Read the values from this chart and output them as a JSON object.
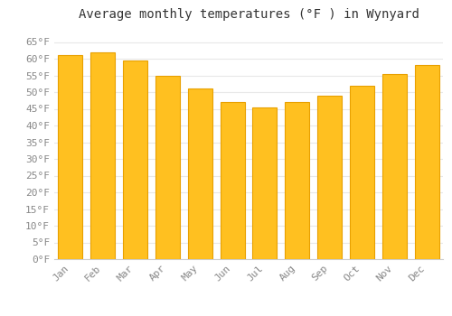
{
  "months": [
    "Jan",
    "Feb",
    "Mar",
    "Apr",
    "May",
    "Jun",
    "Jul",
    "Aug",
    "Sep",
    "Oct",
    "Nov",
    "Dec"
  ],
  "values": [
    61,
    62,
    59.5,
    55,
    51,
    47,
    45.5,
    47,
    49,
    52,
    55.5,
    58
  ],
  "bar_color_face": "#FFC020",
  "bar_color_edge": "#E8A000",
  "title": "Average monthly temperatures (°F ) in Wynyard",
  "ylim": [
    0,
    70
  ],
  "yticks": [
    0,
    5,
    10,
    15,
    20,
    25,
    30,
    35,
    40,
    45,
    50,
    55,
    60,
    65
  ],
  "ytick_labels": [
    "0°F",
    "5°F",
    "10°F",
    "15°F",
    "20°F",
    "25°F",
    "30°F",
    "35°F",
    "40°F",
    "45°F",
    "50°F",
    "55°F",
    "60°F",
    "65°F"
  ],
  "background_color": "#ffffff",
  "grid_color": "#e8e8e8",
  "title_fontsize": 10,
  "tick_fontsize": 8,
  "bar_width": 0.75,
  "tick_color": "#888888"
}
